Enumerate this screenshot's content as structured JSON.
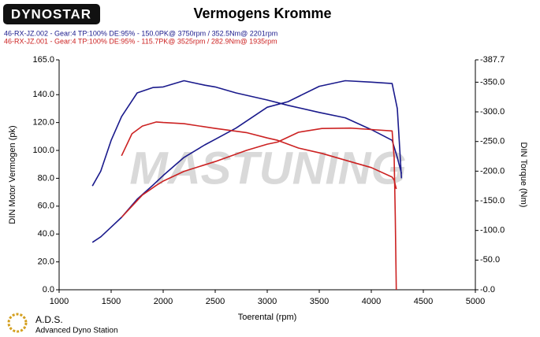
{
  "header": {
    "logo": "DYNOSTAR"
  },
  "chart_data": {
    "type": "line",
    "title": "Vermogens Kromme",
    "x_label": "Toerental (rpm)",
    "y_label": "DIN Motor Vermogen (pk)",
    "y2_label": "DIN Torque (Nm)",
    "watermark": "MASTUNING",
    "xlim": [
      1000,
      5000
    ],
    "xticks": [
      1000,
      1500,
      2000,
      2500,
      3000,
      3500,
      4000,
      4500,
      5000
    ],
    "ylim": [
      0,
      165
    ],
    "yticks": [
      {
        "value": 0,
        "label": "0.0"
      },
      {
        "value": 20,
        "label": "20.0"
      },
      {
        "value": 40,
        "label": "40.0"
      },
      {
        "value": 60,
        "label": "60.0"
      },
      {
        "value": 80,
        "label": "80.0"
      },
      {
        "value": 100,
        "label": "100.0"
      },
      {
        "value": 120,
        "label": "120.0"
      },
      {
        "value": 140,
        "label": "140.0"
      },
      {
        "value": 165,
        "label": "165.0"
      }
    ],
    "y2lim": [
      0,
      387.7
    ],
    "y2ticks": [
      {
        "value": 0,
        "label": "-0.0"
      },
      {
        "value": 50,
        "label": "-50.0"
      },
      {
        "value": 100,
        "label": "-100.0"
      },
      {
        "value": 150,
        "label": "-150.0"
      },
      {
        "value": 200,
        "label": "-200.0"
      },
      {
        "value": 250,
        "label": "-250.0"
      },
      {
        "value": 300,
        "label": "-300.0"
      },
      {
        "value": 350,
        "label": "-350.0"
      },
      {
        "value": 387.7,
        "label": "-387.7"
      }
    ],
    "runs": [
      {
        "name": "46-RX-JZ.002 - Gear:4 TP:100% DE:95%   - 150.0PK@ 3750rpm / 352.5Nm@ 2201rpm",
        "color": "#1a1a8c",
        "x": [
          1320,
          1400,
          1500,
          1600,
          1750,
          1900,
          2000,
          2200,
          2400,
          2500,
          2700,
          3000,
          3200,
          3500,
          3750,
          4000,
          4200,
          4250,
          4290
        ],
        "power": [
          34,
          38,
          45,
          52,
          65,
          75,
          82,
          95,
          104,
          108,
          116,
          131,
          135,
          146,
          150,
          149,
          148,
          130,
          80
        ],
        "torque": [
          175,
          200,
          252,
          292,
          332,
          341,
          342,
          352.5,
          345,
          342,
          332,
          320,
          311,
          299,
          290,
          270,
          252,
          223,
          196
        ]
      },
      {
        "name": "46-RX-JZ.001 - Gear:4 TP:100% DE:95%   - 115.7PK@ 3525rpm / 282.9Nm@ 1935rpm",
        "color": "#cc2222",
        "x": [
          1600,
          1700,
          1800,
          1935,
          2000,
          2200,
          2500,
          2800,
          3000,
          3100,
          3300,
          3525,
          3800,
          4000,
          4200,
          4220,
          4230,
          4240
        ],
        "power": [
          52,
          60,
          68,
          75,
          78,
          85,
          92,
          100,
          104.5,
          106,
          113,
          115.7,
          116,
          115,
          114,
          95,
          53,
          0
        ],
        "torque": [
          226,
          263,
          276,
          282.9,
          282,
          280,
          272,
          265,
          256,
          252,
          239,
          230,
          216,
          206,
          190,
          185,
          177,
          170
        ]
      }
    ]
  },
  "footer": {
    "name": "A.D.S.",
    "subtitle": "Advanced Dyno Station"
  }
}
